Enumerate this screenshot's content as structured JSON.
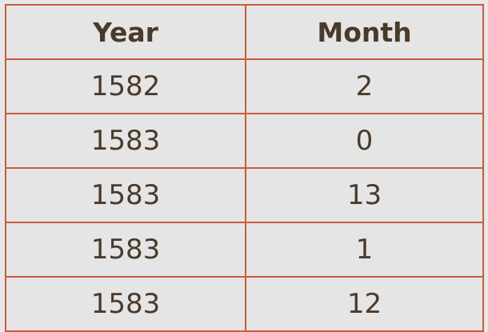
{
  "table": {
    "headers": [
      "Year",
      "Month"
    ],
    "rows": [
      [
        "1582",
        "2"
      ],
      [
        "1583",
        "0"
      ],
      [
        "1583",
        "13"
      ],
      [
        "1583",
        "1"
      ],
      [
        "1583",
        "12"
      ]
    ]
  },
  "colors": {
    "border": "#c85b3c",
    "text": "#4a3a2a",
    "background": "#e5e5e5"
  }
}
